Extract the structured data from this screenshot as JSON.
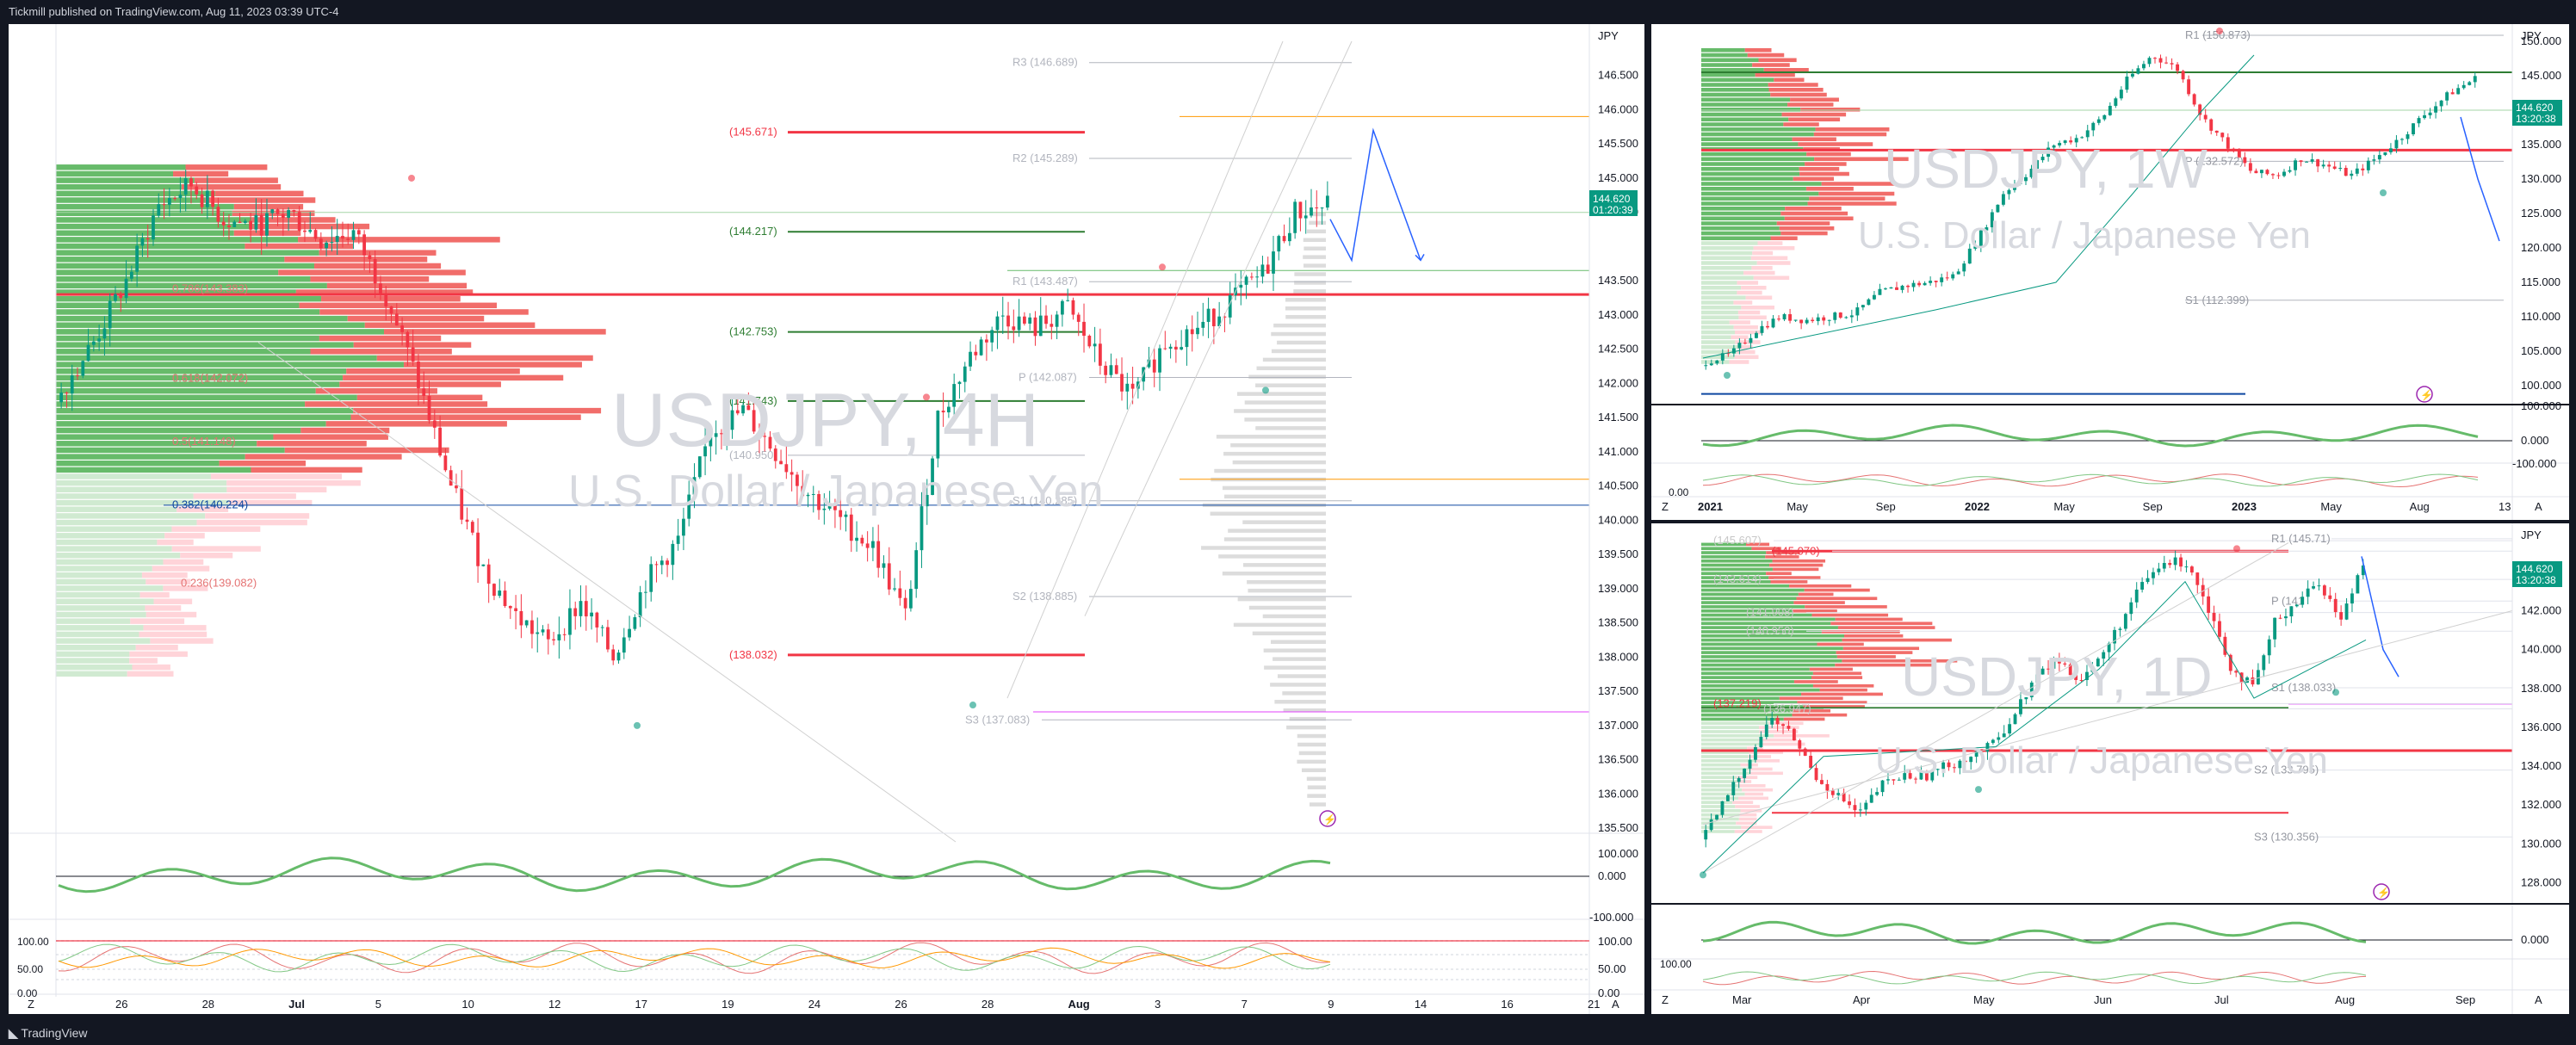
{
  "header": {
    "publish_text": "Tickmill published on TradingView.com, Aug 11, 2023 03:39 UTC-4"
  },
  "footer": {
    "brand": "TradingView"
  },
  "colors": {
    "up": "#089981",
    "down": "#f23645",
    "green_line": "#2e7d32",
    "red_line": "#f23645",
    "blue_path": "#2962ff",
    "orange": "#ff9800",
    "magenta": "#e040fb"
  },
  "main": {
    "symbol": "USDJPY, 4H",
    "description": "U.S. Dollar / Japanese Yen",
    "currency": "JPY",
    "last_price": "144.620",
    "countdown": "01:20:39",
    "y_ticks": [
      "146.500",
      "146.000",
      "145.500",
      "145.000",
      "144.500",
      "143.500",
      "143.000",
      "142.500",
      "142.000",
      "141.500",
      "141.000",
      "140.500",
      "140.000",
      "139.500",
      "139.000",
      "138.500",
      "138.000",
      "137.500",
      "137.000",
      "136.500",
      "136.000",
      "135.500"
    ],
    "x_ticks": [
      "26",
      "28",
      "Jul",
      "5",
      "10",
      "12",
      "17",
      "19",
      "24",
      "26",
      "28",
      "Aug",
      "3",
      "7",
      "9",
      "14",
      "16",
      "21"
    ],
    "levels": [
      {
        "label": "R3 (146.689)",
        "color": "#b2b5be"
      },
      {
        "label": "(145.671)",
        "color": "#f23645"
      },
      {
        "label": "R2 (145.289)",
        "color": "#b2b5be"
      },
      {
        "label": "(144.217)",
        "color": "#2e7d32"
      },
      {
        "label": "R1 (143.487)",
        "color": "#b2b5be"
      },
      {
        "label": "(142.753)",
        "color": "#2e7d32"
      },
      {
        "label": "P (142.087)",
        "color": "#b2b5be"
      },
      {
        "label": "(141.743)",
        "color": "#2e7d32"
      },
      {
        "label": "(140.950)",
        "color": "#b2b5be"
      },
      {
        "label": "S1 (140.285)",
        "color": "#b2b5be"
      },
      {
        "label": "S2 (138.885)",
        "color": "#b2b5be"
      },
      {
        "label": "(138.032)",
        "color": "#f23645"
      },
      {
        "label": "S3 (137.083)",
        "color": "#b2b5be"
      }
    ],
    "fib_labels": [
      "0.786(143.383)",
      "0.618(142.072)",
      "0.5(141.148)",
      "0.382(140.224)",
      "0.236(139.082)"
    ],
    "osc1_ticks": [
      "100.000",
      "0.000",
      "-100.000"
    ],
    "osc2_ticks": [
      "100.00",
      "50.00",
      "0.00"
    ],
    "osc2_left_ticks": [
      "100.00",
      "50.00",
      "0.00"
    ],
    "corner_z": "Z",
    "corner_a": "A"
  },
  "top_right": {
    "currency": "JPY",
    "last_price": "144.620",
    "countdown": "13:20:38",
    "watermark_symbol": "USDJPY, 1W",
    "watermark_desc": "U.S. Dollar / Japanese Yen",
    "y_ticks": [
      "150.000",
      "145.000",
      "140.000",
      "135.000",
      "130.000",
      "125.000",
      "120.000",
      "115.000",
      "110.000",
      "105.000",
      "100.000"
    ],
    "x_ticks": [
      "2021",
      "May",
      "Sep",
      "2022",
      "May",
      "Sep",
      "2023",
      "May",
      "Aug",
      "13"
    ],
    "levels": [
      {
        "label": "R1 (150.873)"
      },
      {
        "label": "P (132.572)"
      },
      {
        "label": "S1 (112.399)"
      }
    ],
    "osc_ticks": [
      "100.000",
      "0.000",
      "-100.000"
    ],
    "osc_left_tick": "0.00",
    "corner_z": "Z",
    "corner_a": "A"
  },
  "bottom_right": {
    "currency": "JPY",
    "last_price": "144.620",
    "countdown": "13:20:38",
    "watermark_symbol": "USDJPY, 1D",
    "watermark_desc": "U.S. Dollar / Japanese Yen",
    "y_ticks": [
      "144.000",
      "142.000",
      "140.000",
      "138.000",
      "136.000",
      "134.000",
      "132.000",
      "130.000",
      "128.000"
    ],
    "x_ticks": [
      "Mar",
      "Apr",
      "May",
      "Jun",
      "Jul",
      "Aug",
      "Sep"
    ],
    "levels": [
      {
        "label": "(145.607)"
      },
      {
        "label": "(145.070)"
      },
      {
        "label": "R1 (145.71)"
      },
      {
        "label": "(143.614)"
      },
      {
        "label": "(141.908)"
      },
      {
        "label": "(140.950)"
      },
      {
        "label": "P (141"
      },
      {
        "label": "(137.219)"
      },
      {
        "label": "(136.947)"
      },
      {
        "label": "S1 (138.033)"
      },
      {
        "label": "S2 (133.795)"
      },
      {
        "label": "S3 (130.356)"
      }
    ],
    "osc_ticks": [
      "0.000"
    ],
    "osc_left_tick": "100.00",
    "corner_z": "Z",
    "corner_a": "A"
  },
  "chart_data": [
    {
      "type": "candlestick",
      "title": "USDJPY, 4H",
      "ylabel": "JPY",
      "ylim": [
        135.3,
        147.0
      ],
      "x_range": [
        "Jun 23",
        "Aug 21"
      ],
      "last": 144.62,
      "levels": {
        "R3": 146.689,
        "R2": 145.289,
        "R1": 143.487,
        "P": 142.087,
        "S1": 140.285,
        "S2": 138.885,
        "S3": 137.083,
        "red_high": 145.671,
        "green_1": 144.217,
        "green_2": 142.753,
        "green_3": 141.743,
        "grey": 140.95,
        "red_low": 138.032,
        "main_red": 143.3
      },
      "fib": {
        "0.786": 143.383,
        "0.618": 142.072,
        "0.5": 141.148,
        "0.382": 140.224,
        "0.236": 139.082
      },
      "projection": [
        144.8,
        145.7,
        143.8
      ],
      "closes_anchor": [
        141.9,
        142.6,
        143.5,
        144.6,
        144.9,
        144.4,
        144.3,
        144.5,
        144.1,
        144.2,
        143.3,
        142.0,
        140.5,
        139.3,
        138.6,
        138.2,
        138.8,
        138.0,
        139.1,
        139.7,
        141.3,
        141.6,
        141.0,
        140.4,
        140.0,
        139.6,
        138.6,
        141.5,
        142.4,
        143.0,
        142.8,
        143.1,
        142.3,
        141.8,
        142.6,
        142.8,
        143.2,
        143.6,
        144.5,
        144.6
      ]
    },
    {
      "type": "candlestick",
      "title": "USDJPY, 1W",
      "ylabel": "JPY",
      "ylim": [
        97.5,
        152.5
      ],
      "closes_anchor": [
        103.5,
        104.5,
        108,
        110,
        109.5,
        110,
        110.5,
        113.5,
        114.5,
        115,
        116,
        121.5,
        128,
        131,
        135,
        136,
        139,
        144.5,
        148,
        146,
        139,
        135,
        131,
        130.5,
        133,
        132,
        130.5,
        133,
        136,
        139.5,
        142.5,
        144.6
      ],
      "levels": {
        "R1": 150.873,
        "P": 132.572,
        "S1": 112.399
      }
    },
    {
      "type": "candlestick",
      "title": "USDJPY, 1D",
      "ylabel": "JPY",
      "ylim": [
        127.0,
        146.5
      ],
      "closes_anchor": [
        130.5,
        132.5,
        134.5,
        136.5,
        135.5,
        133.5,
        132.5,
        131.5,
        133,
        133.5,
        133.5,
        134,
        134.5,
        135,
        136.5,
        138.5,
        139.5,
        138.5,
        139.5,
        141.5,
        143.5,
        144.5,
        144.5,
        142,
        139,
        138,
        141.5,
        142.5,
        143.5,
        141.5,
        144.6
      ],
      "levels": {
        "R1": 145.71,
        "S1": 138.033,
        "S2": 133.795,
        "S3": 130.356,
        "red": 145.07,
        "main_red": 134.8
      }
    }
  ]
}
